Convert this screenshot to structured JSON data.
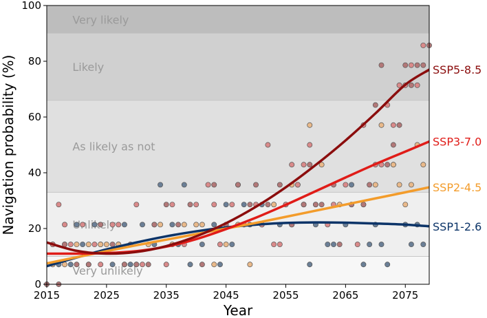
{
  "chart_data": {
    "type": "scatter",
    "title": "",
    "xlabel": "Year",
    "ylabel": "Navigation probability (%)",
    "xlim": [
      2015,
      2079
    ],
    "ylim": [
      0,
      100
    ],
    "xticks": [
      2015,
      2025,
      2035,
      2045,
      2055,
      2065,
      2075
    ],
    "yticks": [
      0,
      20,
      40,
      60,
      80,
      100
    ],
    "bands": [
      {
        "label": "Very unlikely",
        "from": 0,
        "to": 10,
        "color": "#f7f7f7"
      },
      {
        "label": "Unlikely",
        "from": 10,
        "to": 33,
        "color": "#efefef"
      },
      {
        "label": "As likely as not",
        "from": 33,
        "to": 66,
        "color": "#e0e0e0"
      },
      {
        "label": "Likely",
        "from": 66,
        "to": 90,
        "color": "#d0d0d0"
      },
      {
        "label": "Very likely",
        "from": 90,
        "to": 100,
        "color": "#bdbdbd"
      }
    ],
    "series": [
      {
        "name": "SSP1-2.6",
        "color": "#0c3468",
        "dot": "#6b7f96",
        "curve": {
          "x": [
            2015,
            2020,
            2025,
            2030,
            2035,
            2040,
            2045,
            2050,
            2055,
            2060,
            2065,
            2070,
            2075,
            2079
          ],
          "y": [
            6.5,
            9.6,
            12.5,
            15.0,
            17.2,
            19.0,
            20.4,
            21.4,
            22.0,
            22.2,
            22.1,
            21.8,
            21.4,
            20.8
          ]
        },
        "points": [
          [
            2016,
            14.3
          ],
          [
            2017,
            7.1
          ],
          [
            2018,
            14.3
          ],
          [
            2019,
            7.1
          ],
          [
            2020,
            21.4
          ],
          [
            2021,
            14.3
          ],
          [
            2022,
            7.1
          ],
          [
            2023,
            21.4
          ],
          [
            2024,
            14.3
          ],
          [
            2026,
            7.1
          ],
          [
            2027,
            14.3
          ],
          [
            2028,
            21.4
          ],
          [
            2029,
            7.1
          ],
          [
            2031,
            21.4
          ],
          [
            2033,
            14.3
          ],
          [
            2034,
            35.7
          ],
          [
            2036,
            21.4
          ],
          [
            2037,
            14.3
          ],
          [
            2038,
            35.7
          ],
          [
            2039,
            7.1
          ],
          [
            2041,
            14.3
          ],
          [
            2043,
            21.4
          ],
          [
            2044,
            7.1
          ],
          [
            2045,
            28.6
          ],
          [
            2046,
            14.3
          ],
          [
            2048,
            28.6
          ],
          [
            2049,
            21.4
          ],
          [
            2051,
            28.6
          ],
          [
            2053,
            28.6
          ],
          [
            2054,
            21.4
          ],
          [
            2056,
            21.4
          ],
          [
            2058,
            28.6
          ],
          [
            2059,
            7.1
          ],
          [
            2060,
            21.4
          ],
          [
            2062,
            14.3
          ],
          [
            2063,
            14.3
          ],
          [
            2065,
            21.4
          ],
          [
            2066,
            35.7
          ],
          [
            2068,
            7.1
          ],
          [
            2069,
            14.3
          ],
          [
            2070,
            21.4
          ],
          [
            2071,
            14.3
          ],
          [
            2072,
            7.1
          ],
          [
            2073,
            42.9
          ],
          [
            2075,
            21.4
          ],
          [
            2076,
            14.3
          ],
          [
            2077,
            21.4
          ],
          [
            2078,
            14.3
          ]
        ]
      },
      {
        "name": "SSP2-4.5",
        "color": "#f39c2b",
        "dot": "#e9b98a",
        "curve": {
          "x": [
            2015,
            2020,
            2025,
            2030,
            2035,
            2040,
            2045,
            2050,
            2055,
            2060,
            2065,
            2070,
            2075,
            2079
          ],
          "y": [
            7.5,
            9.7,
            11.9,
            14.0,
            16.0,
            18.0,
            20.0,
            22.0,
            24.2,
            26.4,
            28.6,
            30.8,
            33.0,
            34.8
          ]
        },
        "points": [
          [
            2016,
            7.1
          ],
          [
            2018,
            7.1
          ],
          [
            2020,
            14.3
          ],
          [
            2022,
            14.3
          ],
          [
            2024,
            14.3
          ],
          [
            2025,
            14.3
          ],
          [
            2027,
            14.3
          ],
          [
            2028,
            7.1
          ],
          [
            2030,
            7.1
          ],
          [
            2032,
            14.3
          ],
          [
            2034,
            21.4
          ],
          [
            2036,
            14.3
          ],
          [
            2038,
            21.4
          ],
          [
            2040,
            21.4
          ],
          [
            2041,
            21.4
          ],
          [
            2043,
            7.1
          ],
          [
            2045,
            14.3
          ],
          [
            2047,
            21.4
          ],
          [
            2049,
            7.1
          ],
          [
            2051,
            21.4
          ],
          [
            2053,
            28.6
          ],
          [
            2055,
            28.6
          ],
          [
            2056,
            35.7
          ],
          [
            2057,
            35.7
          ],
          [
            2058,
            28.6
          ],
          [
            2059,
            57.1
          ],
          [
            2061,
            42.9
          ],
          [
            2064,
            28.6
          ],
          [
            2066,
            28.6
          ],
          [
            2068,
            28.6
          ],
          [
            2070,
            35.7
          ],
          [
            2071,
            57.1
          ],
          [
            2073,
            42.9
          ],
          [
            2074,
            35.7
          ],
          [
            2075,
            28.6
          ],
          [
            2076,
            35.7
          ],
          [
            2077,
            50.0
          ],
          [
            2078,
            42.9
          ]
        ]
      },
      {
        "name": "SSP3-7.0",
        "color": "#e01c18",
        "dot": "#d98a8a",
        "curve": {
          "x": [
            2015,
            2020,
            2025,
            2030,
            2035,
            2040,
            2045,
            2050,
            2055,
            2060,
            2065,
            2070,
            2075,
            2079
          ],
          "y": [
            11.0,
            11.0,
            11.2,
            11.9,
            13.5,
            16.2,
            19.8,
            23.9,
            28.5,
            33.4,
            38.3,
            43.1,
            47.6,
            51.2
          ]
        },
        "points": [
          [
            2016,
            14.3
          ],
          [
            2017,
            28.6
          ],
          [
            2018,
            21.4
          ],
          [
            2019,
            14.3
          ],
          [
            2021,
            21.4
          ],
          [
            2023,
            14.3
          ],
          [
            2024,
            7.1
          ],
          [
            2026,
            21.4
          ],
          [
            2027,
            21.4
          ],
          [
            2029,
            14.3
          ],
          [
            2030,
            28.6
          ],
          [
            2031,
            7.1
          ],
          [
            2033,
            21.4
          ],
          [
            2035,
            7.1
          ],
          [
            2036,
            28.6
          ],
          [
            2038,
            14.3
          ],
          [
            2040,
            28.6
          ],
          [
            2042,
            35.7
          ],
          [
            2043,
            28.6
          ],
          [
            2044,
            14.3
          ],
          [
            2046,
            28.6
          ],
          [
            2047,
            35.7
          ],
          [
            2048,
            21.4
          ],
          [
            2050,
            28.6
          ],
          [
            2051,
            21.4
          ],
          [
            2052,
            50.0
          ],
          [
            2053,
            14.3
          ],
          [
            2054,
            14.3
          ],
          [
            2055,
            28.6
          ],
          [
            2056,
            42.9
          ],
          [
            2057,
            35.7
          ],
          [
            2058,
            42.9
          ],
          [
            2059,
            50.0
          ],
          [
            2060,
            28.6
          ],
          [
            2062,
            21.4
          ],
          [
            2063,
            28.6
          ],
          [
            2065,
            35.7
          ],
          [
            2067,
            14.3
          ],
          [
            2068,
            57.1
          ],
          [
            2070,
            42.9
          ],
          [
            2071,
            42.9
          ],
          [
            2072,
            64.3
          ],
          [
            2073,
            57.1
          ],
          [
            2074,
            71.4
          ],
          [
            2075,
            71.4
          ],
          [
            2076,
            78.6
          ],
          [
            2077,
            71.4
          ],
          [
            2078,
            85.7
          ]
        ]
      },
      {
        "name": "SSP5-8.5",
        "color": "#8b0d0d",
        "dot": "#b27878",
        "curve": {
          "x": [
            2015,
            2020,
            2025,
            2030,
            2035,
            2040,
            2045,
            2050,
            2055,
            2060,
            2065,
            2070,
            2075,
            2079
          ],
          "y": [
            15.0,
            12.0,
            11.0,
            11.6,
            13.7,
            17.2,
            21.9,
            27.8,
            34.8,
            42.8,
            51.6,
            61.3,
            71.6,
            77.0
          ]
        },
        "points": [
          [
            2015,
            0.0
          ],
          [
            2017,
            0.0
          ],
          [
            2018,
            14.3
          ],
          [
            2020,
            7.1
          ],
          [
            2022,
            7.1
          ],
          [
            2024,
            21.4
          ],
          [
            2026,
            14.3
          ],
          [
            2028,
            7.1
          ],
          [
            2030,
            7.1
          ],
          [
            2032,
            7.1
          ],
          [
            2033,
            21.4
          ],
          [
            2035,
            28.6
          ],
          [
            2037,
            21.4
          ],
          [
            2039,
            28.6
          ],
          [
            2041,
            7.1
          ],
          [
            2043,
            35.7
          ],
          [
            2045,
            21.4
          ],
          [
            2047,
            35.7
          ],
          [
            2049,
            28.6
          ],
          [
            2050,
            35.7
          ],
          [
            2052,
            28.6
          ],
          [
            2054,
            35.7
          ],
          [
            2056,
            21.4
          ],
          [
            2058,
            28.6
          ],
          [
            2059,
            42.9
          ],
          [
            2060,
            28.6
          ],
          [
            2061,
            28.6
          ],
          [
            2063,
            35.7
          ],
          [
            2064,
            14.3
          ],
          [
            2066,
            28.6
          ],
          [
            2068,
            28.6
          ],
          [
            2069,
            35.7
          ],
          [
            2070,
            64.3
          ],
          [
            2071,
            78.6
          ],
          [
            2072,
            42.9
          ],
          [
            2073,
            50.0
          ],
          [
            2074,
            57.1
          ],
          [
            2075,
            78.6
          ],
          [
            2076,
            71.4
          ],
          [
            2077,
            78.6
          ],
          [
            2078,
            78.6
          ],
          [
            2079,
            85.7
          ]
        ]
      }
    ]
  }
}
